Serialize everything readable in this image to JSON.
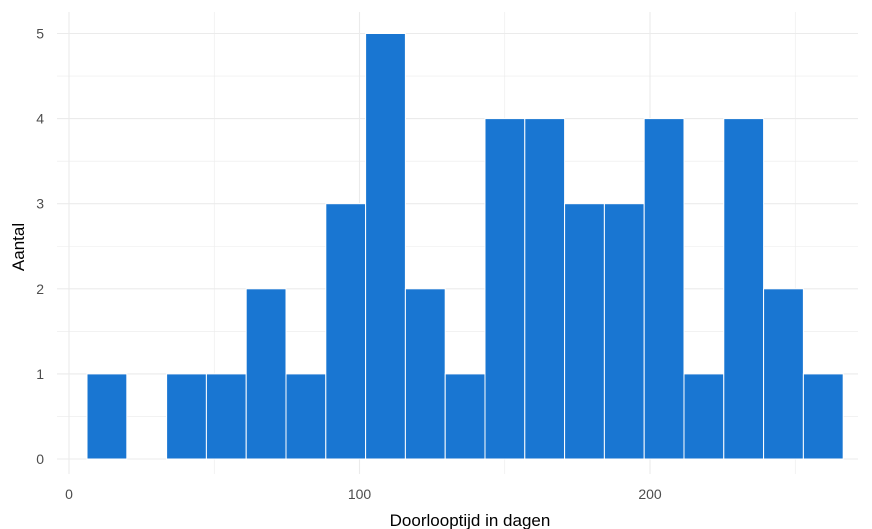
{
  "chart_data": {
    "type": "bar",
    "subtype": "histogram",
    "xlabel": "Doorlooptijd in dagen",
    "ylabel": "Aantal",
    "xlim": [
      0,
      270
    ],
    "ylim": [
      0,
      5
    ],
    "x_ticks": [
      0,
      100,
      200
    ],
    "y_ticks": [
      0,
      1,
      2,
      3,
      4,
      5
    ],
    "grid": true,
    "bin_width": 13.7,
    "bins": [
      {
        "start": 6.2,
        "end": 19.9,
        "count": 1
      },
      {
        "start": 33.6,
        "end": 47.3,
        "count": 1
      },
      {
        "start": 47.3,
        "end": 61.0,
        "count": 1
      },
      {
        "start": 61.0,
        "end": 74.7,
        "count": 2
      },
      {
        "start": 74.7,
        "end": 88.4,
        "count": 1
      },
      {
        "start": 88.4,
        "end": 102.1,
        "count": 3
      },
      {
        "start": 102.1,
        "end": 115.8,
        "count": 5
      },
      {
        "start": 115.8,
        "end": 129.5,
        "count": 2
      },
      {
        "start": 129.5,
        "end": 143.2,
        "count": 1
      },
      {
        "start": 143.2,
        "end": 156.9,
        "count": 4
      },
      {
        "start": 156.9,
        "end": 170.6,
        "count": 4
      },
      {
        "start": 170.6,
        "end": 184.3,
        "count": 3
      },
      {
        "start": 184.3,
        "end": 198.0,
        "count": 3
      },
      {
        "start": 198.0,
        "end": 211.7,
        "count": 4
      },
      {
        "start": 211.7,
        "end": 225.4,
        "count": 1
      },
      {
        "start": 225.4,
        "end": 239.1,
        "count": 4
      },
      {
        "start": 239.1,
        "end": 252.8,
        "count": 2
      },
      {
        "start": 252.8,
        "end": 266.5,
        "count": 1
      }
    ],
    "bar_color": "#1976D2",
    "bar_edge_color": "#ffffff",
    "grid_color": "#ebebeb"
  }
}
